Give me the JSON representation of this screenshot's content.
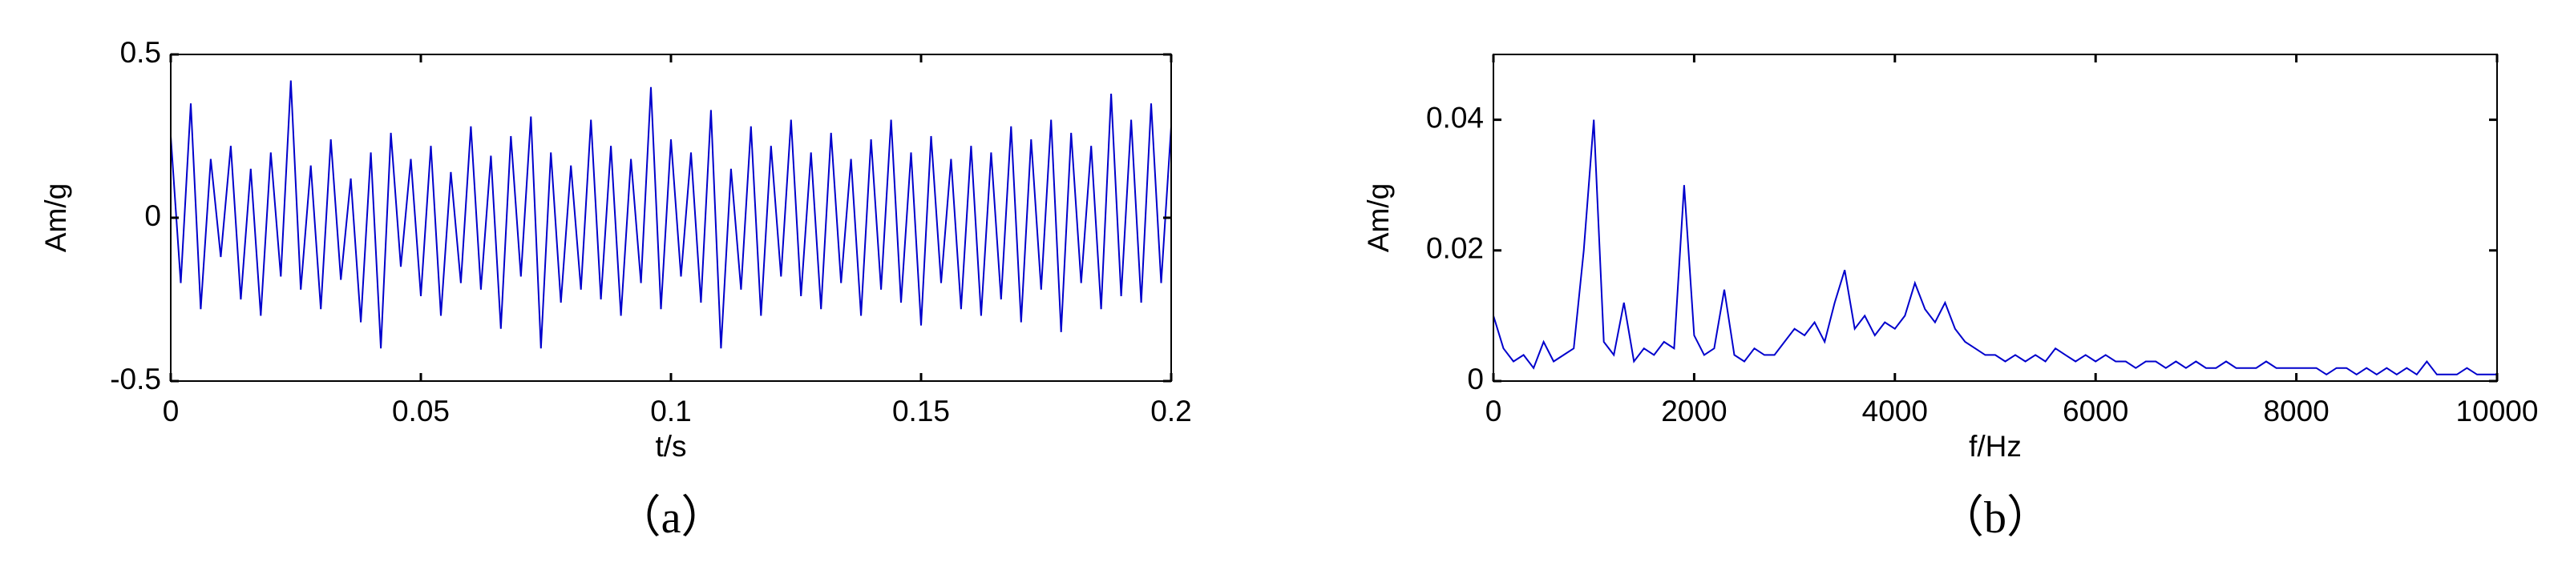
{
  "chart_data": [
    {
      "type": "line",
      "xlabel": "t/s",
      "ylabel": "Am/g",
      "caption": "（a）",
      "color": "#0000cc",
      "xlim": [
        0,
        0.2
      ],
      "ylim": [
        -0.5,
        0.5
      ],
      "xticks": [
        0,
        0.05,
        0.1,
        0.15,
        0.2
      ],
      "yticks": [
        -0.5,
        0,
        0.5
      ],
      "x": [
        0,
        0.002,
        0.004,
        0.006,
        0.008,
        0.01,
        0.012,
        0.014,
        0.016,
        0.018,
        0.02,
        0.022,
        0.024,
        0.026,
        0.028,
        0.03,
        0.032,
        0.034,
        0.036,
        0.038,
        0.04,
        0.042,
        0.044,
        0.046,
        0.048,
        0.05,
        0.052,
        0.054,
        0.056,
        0.058,
        0.06,
        0.062,
        0.064,
        0.066,
        0.068,
        0.07,
        0.072,
        0.074,
        0.076,
        0.078,
        0.08,
        0.082,
        0.084,
        0.086,
        0.088,
        0.09,
        0.092,
        0.094,
        0.096,
        0.098,
        0.1,
        0.102,
        0.104,
        0.106,
        0.108,
        0.11,
        0.112,
        0.114,
        0.116,
        0.118,
        0.12,
        0.122,
        0.124,
        0.126,
        0.128,
        0.13,
        0.132,
        0.134,
        0.136,
        0.138,
        0.14,
        0.142,
        0.144,
        0.146,
        0.148,
        0.15,
        0.152,
        0.154,
        0.156,
        0.158,
        0.16,
        0.162,
        0.164,
        0.166,
        0.168,
        0.17,
        0.172,
        0.174,
        0.176,
        0.178,
        0.18,
        0.182,
        0.184,
        0.186,
        0.188,
        0.19,
        0.192,
        0.194,
        0.196,
        0.198,
        0.2
      ],
      "values": [
        0.25,
        -0.2,
        0.35,
        -0.28,
        0.18,
        -0.12,
        0.22,
        -0.25,
        0.15,
        -0.3,
        0.2,
        -0.18,
        0.42,
        -0.22,
        0.16,
        -0.28,
        0.24,
        -0.19,
        0.12,
        -0.32,
        0.2,
        -0.4,
        0.26,
        -0.15,
        0.18,
        -0.24,
        0.22,
        -0.3,
        0.14,
        -0.2,
        0.28,
        -0.22,
        0.19,
        -0.34,
        0.25,
        -0.18,
        0.31,
        -0.4,
        0.2,
        -0.26,
        0.16,
        -0.22,
        0.3,
        -0.25,
        0.22,
        -0.3,
        0.18,
        -0.2,
        0.4,
        -0.28,
        0.24,
        -0.18,
        0.2,
        -0.26,
        0.33,
        -0.4,
        0.15,
        -0.22,
        0.28,
        -0.3,
        0.22,
        -0.18,
        0.3,
        -0.24,
        0.2,
        -0.28,
        0.26,
        -0.2,
        0.18,
        -0.3,
        0.24,
        -0.22,
        0.3,
        -0.26,
        0.2,
        -0.33,
        0.25,
        -0.2,
        0.18,
        -0.28,
        0.22,
        -0.3,
        0.2,
        -0.25,
        0.28,
        -0.32,
        0.24,
        -0.22,
        0.3,
        -0.35,
        0.26,
        -0.2,
        0.22,
        -0.28,
        0.38,
        -0.24,
        0.3,
        -0.26,
        0.35,
        -0.2,
        0.28
      ]
    },
    {
      "type": "line",
      "xlabel": "f/Hz",
      "ylabel": "Am/g",
      "caption": "（b）",
      "color": "#0000cc",
      "xlim": [
        0,
        10000
      ],
      "ylim": [
        0,
        0.05
      ],
      "xticks": [
        0,
        2000,
        4000,
        6000,
        8000,
        10000
      ],
      "yticks": [
        0,
        0.02,
        0.04
      ],
      "x": [
        0,
        100,
        200,
        300,
        400,
        500,
        600,
        700,
        800,
        900,
        1000,
        1100,
        1200,
        1300,
        1400,
        1500,
        1600,
        1700,
        1800,
        1900,
        2000,
        2100,
        2200,
        2300,
        2400,
        2500,
        2600,
        2700,
        2800,
        2900,
        3000,
        3100,
        3200,
        3300,
        3400,
        3500,
        3600,
        3700,
        3800,
        3900,
        4000,
        4100,
        4200,
        4300,
        4400,
        4500,
        4600,
        4700,
        4800,
        4900,
        5000,
        5100,
        5200,
        5300,
        5400,
        5500,
        5600,
        5700,
        5800,
        5900,
        6000,
        6100,
        6200,
        6300,
        6400,
        6500,
        6600,
        6700,
        6800,
        6900,
        7000,
        7100,
        7200,
        7300,
        7400,
        7500,
        7600,
        7700,
        7800,
        7900,
        8000,
        8100,
        8200,
        8300,
        8400,
        8500,
        8600,
        8700,
        8800,
        8900,
        9000,
        9100,
        9200,
        9300,
        9400,
        9500,
        9600,
        9700,
        9800,
        9900,
        10000
      ],
      "values": [
        0.01,
        0.005,
        0.003,
        0.004,
        0.002,
        0.006,
        0.003,
        0.004,
        0.005,
        0.02,
        0.04,
        0.006,
        0.004,
        0.012,
        0.003,
        0.005,
        0.004,
        0.006,
        0.005,
        0.03,
        0.007,
        0.004,
        0.005,
        0.014,
        0.004,
        0.003,
        0.005,
        0.004,
        0.004,
        0.006,
        0.008,
        0.007,
        0.009,
        0.006,
        0.012,
        0.017,
        0.008,
        0.01,
        0.007,
        0.009,
        0.008,
        0.01,
        0.015,
        0.011,
        0.009,
        0.012,
        0.008,
        0.006,
        0.005,
        0.004,
        0.004,
        0.003,
        0.004,
        0.003,
        0.004,
        0.003,
        0.005,
        0.004,
        0.003,
        0.004,
        0.003,
        0.004,
        0.003,
        0.003,
        0.002,
        0.003,
        0.003,
        0.002,
        0.003,
        0.002,
        0.003,
        0.002,
        0.002,
        0.003,
        0.002,
        0.002,
        0.002,
        0.003,
        0.002,
        0.002,
        0.002,
        0.002,
        0.002,
        0.001,
        0.002,
        0.002,
        0.001,
        0.002,
        0.001,
        0.002,
        0.001,
        0.002,
        0.001,
        0.003,
        0.001,
        0.001,
        0.001,
        0.002,
        0.001,
        0.001,
        0.001
      ]
    }
  ]
}
